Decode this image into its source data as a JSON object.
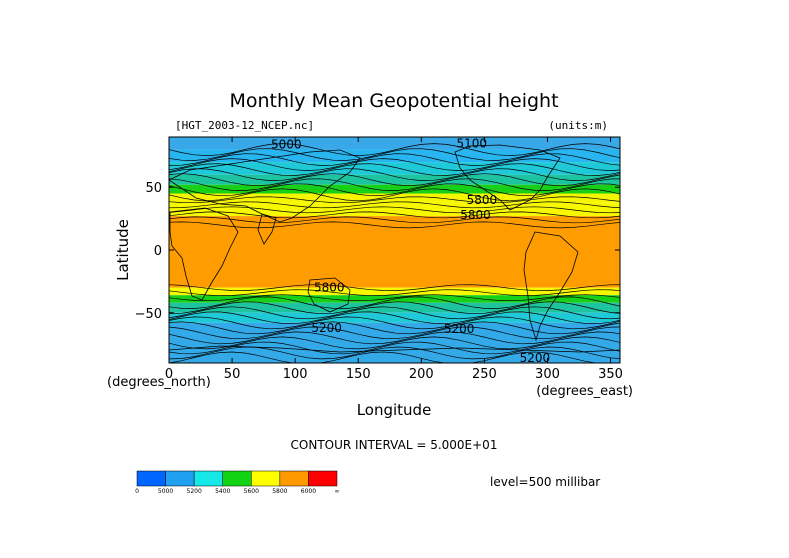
{
  "chart_data": {
    "type": "heatmap",
    "title": "Monthly Mean Geopotential height",
    "source_label": "[HGT_2003-12_NCEP.nc]",
    "units_label": "(units:m)",
    "xlabel": "Longitude",
    "ylabel": "Latitude",
    "x_unit_label": "(degrees_east)",
    "y_unit_label": "(degrees_north)",
    "xlim": [
      0,
      357.5
    ],
    "ylim": [
      -90,
      90
    ],
    "x_ticks": [
      0,
      50,
      100,
      150,
      200,
      250,
      300,
      350
    ],
    "y_ticks": [
      50,
      0,
      -50
    ],
    "contour_interval_text": "CONTOUR INTERVAL = 5.000E+01",
    "level_text": "level=500 millibar",
    "fill_bands": [
      {
        "lat_top": 90,
        "lat_bottom": 80,
        "color": "#39a8e8"
      },
      {
        "lat_top": 80,
        "lat_bottom": 70,
        "color": "#29b6f0"
      },
      {
        "lat_top": 70,
        "lat_bottom": 60,
        "color": "#1fc9d8"
      },
      {
        "lat_top": 60,
        "lat_bottom": 52,
        "color": "#1ec4a0"
      },
      {
        "lat_top": 52,
        "lat_bottom": 45,
        "color": "#18d018"
      },
      {
        "lat_top": 45,
        "lat_bottom": 38,
        "color": "#f6f600"
      },
      {
        "lat_top": 38,
        "lat_bottom": 27,
        "color": "#f8f800"
      },
      {
        "lat_top": 27,
        "lat_bottom": -30,
        "color": "#ff9d00"
      },
      {
        "lat_top": -30,
        "lat_bottom": -36,
        "color": "#f8f800"
      },
      {
        "lat_top": -36,
        "lat_bottom": -42,
        "color": "#18d018"
      },
      {
        "lat_top": -42,
        "lat_bottom": -50,
        "color": "#1ec4a0"
      },
      {
        "lat_top": -50,
        "lat_bottom": -58,
        "color": "#1fc9d8"
      },
      {
        "lat_top": -58,
        "lat_bottom": -90,
        "color": "#33a9e8"
      }
    ],
    "contour_labels": [
      {
        "text": "5000",
        "lon": 93,
        "lat": 84
      },
      {
        "text": "5100",
        "lon": 240,
        "lat": 85
      },
      {
        "text": "5800",
        "lon": 248,
        "lat": 40
      },
      {
        "text": "5800",
        "lon": 243,
        "lat": 28
      },
      {
        "text": "5800",
        "lon": 127,
        "lat": -30
      },
      {
        "text": "5200",
        "lon": 230,
        "lat": -63
      },
      {
        "text": "5200",
        "lon": 290,
        "lat": -86
      },
      {
        "text": "5200",
        "lon": 125,
        "lat": -62
      }
    ],
    "colorbar": {
      "colors": [
        "#0066ff",
        "#1fa0f0",
        "#16e7e7",
        "#12d312",
        "#ffff00",
        "#ff9900",
        "#ff0000"
      ],
      "labels": [
        "0",
        "5000",
        "5200",
        "5400",
        "5600",
        "5800",
        "6000",
        "∞"
      ]
    }
  }
}
